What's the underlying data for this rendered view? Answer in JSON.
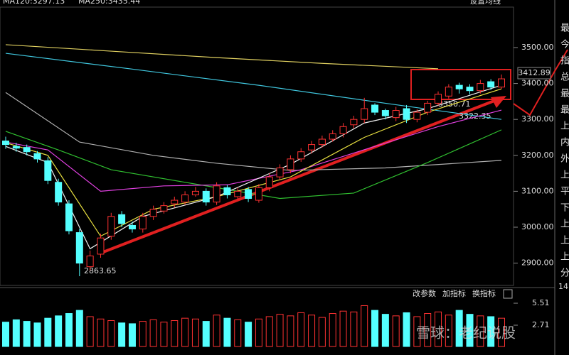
{
  "chart_data": {
    "type": "candlestick",
    "header": [
      "MA120:3297.13",
      "MA250:3435.44"
    ],
    "settings_label": "设置均线",
    "open": [
      3240,
      3225,
      3222,
      3205,
      3185,
      3125,
      3065,
      2985,
      2890,
      2925,
      2975,
      3035,
      3005,
      2995,
      3030,
      3045,
      3065,
      3070,
      3090,
      3100,
      3070,
      3110,
      3085,
      3105,
      3075,
      3110,
      3140,
      3160,
      3190,
      3215,
      3230,
      3245,
      3260,
      3285,
      3300,
      3340,
      3325,
      3305,
      3330,
      3300,
      3320,
      3345,
      3365,
      3395,
      3390,
      3380,
      3405,
      3390
    ],
    "high": [
      3252,
      3235,
      3230,
      3212,
      3195,
      3135,
      3075,
      2995,
      2935,
      2982,
      3040,
      3045,
      3015,
      3040,
      3060,
      3070,
      3085,
      3100,
      3112,
      3108,
      3125,
      3118,
      3110,
      3112,
      3120,
      3150,
      3175,
      3200,
      3220,
      3240,
      3255,
      3270,
      3290,
      3310,
      3360,
      3345,
      3330,
      3335,
      3340,
      3328,
      3352,
      3378,
      3398,
      3402,
      3398,
      3410,
      3412,
      3425
    ],
    "low": [
      3218,
      3210,
      3200,
      3180,
      3120,
      3060,
      2980,
      2863.65,
      2880,
      2915,
      2965,
      3000,
      2985,
      2985,
      3020,
      3038,
      3055,
      3062,
      3085,
      3060,
      3062,
      3080,
      3078,
      3070,
      3068,
      3100,
      3132,
      3150,
      3182,
      3205,
      3222,
      3238,
      3250,
      3275,
      3290,
      3312,
      3300,
      3295,
      3290,
      3292,
      3312,
      3338,
      3358,
      3372,
      3370,
      3372,
      3382,
      3385
    ],
    "close": [
      3230,
      3220,
      3210,
      3190,
      3130,
      3070,
      2990,
      2900,
      2920,
      2970,
      3030,
      3010,
      2995,
      3030,
      3050,
      3060,
      3075,
      3090,
      3100,
      3070,
      3115,
      3090,
      3100,
      3080,
      3110,
      3140,
      3165,
      3190,
      3210,
      3230,
      3245,
      3260,
      3280,
      3300,
      3330,
      3320,
      3310,
      3325,
      3300,
      3320,
      3345,
      3370,
      3390,
      3385,
      3380,
      3400,
      3390,
      3412.89
    ],
    "up_color": "#ff3232",
    "down_color": "#54ffff",
    "ma_series": [
      {
        "color": "#e0d060",
        "x": [
          0,
          10,
          20,
          30,
          41
        ],
        "values": [
          3508,
          3490,
          3472,
          3456,
          3441
        ]
      },
      {
        "color": "#40c8e0",
        "x": [
          0,
          12,
          24,
          36,
          47
        ],
        "values": [
          3484,
          3440,
          3395,
          3345,
          3300
        ]
      },
      {
        "color": "#b0b0b0",
        "x": [
          0,
          7,
          14,
          20,
          27,
          36,
          47
        ],
        "values": [
          3375,
          3237,
          3200,
          3178,
          3158,
          3165,
          3186
        ]
      },
      {
        "color": "#30c030",
        "x": [
          0,
          5,
          10,
          18,
          26,
          33,
          40,
          47
        ],
        "values": [
          3267,
          3215,
          3160,
          3120,
          3080,
          3095,
          3180,
          3271
        ]
      },
      {
        "color": "#e040e0",
        "x": [
          0,
          4,
          9,
          15,
          21,
          28,
          35,
          41,
          47
        ],
        "values": [
          3237,
          3215,
          3100,
          3115,
          3118,
          3160,
          3225,
          3280,
          3326
        ]
      },
      {
        "color": "#e8e040",
        "x": [
          0,
          4,
          9,
          14,
          20,
          27,
          34,
          40,
          47
        ],
        "values": [
          3235,
          3200,
          2975,
          3050,
          3085,
          3140,
          3250,
          3320,
          3385
        ]
      },
      {
        "color": "#f0f0f0",
        "x": [
          0,
          4,
          8,
          13,
          20,
          27,
          34,
          40,
          47
        ],
        "values": [
          3225,
          3180,
          2940,
          3030,
          3085,
          3175,
          3290,
          3330,
          3395
        ]
      }
    ],
    "ylim": [
      2841.9,
      3612.6
    ],
    "yticks": [
      {
        "value": 2900,
        "label": "2900.00"
      },
      {
        "value": 3000,
        "label": "3000.00"
      },
      {
        "value": 3100,
        "label": "3100.00"
      },
      {
        "value": 3200,
        "label": "3200.00"
      },
      {
        "value": 3300,
        "label": "3300.00"
      },
      {
        "value": 3400,
        "label": "3400.00"
      },
      {
        "value": 3500,
        "label": "3500.00"
      }
    ],
    "annotations": [
      "2863.65",
      "3412.89",
      "3350.71",
      "3322.35"
    ],
    "volume": [
      3.1,
      3.4,
      3.2,
      3.0,
      3.6,
      3.9,
      4.2,
      4.6,
      3.8,
      3.5,
      3.3,
      3.0,
      2.9,
      3.2,
      3.4,
      3.1,
      3.3,
      3.6,
      3.5,
      3.2,
      4.0,
      3.6,
      3.4,
      3.1,
      3.5,
      3.8,
      4.1,
      3.9,
      4.3,
      4.0,
      3.7,
      4.2,
      4.5,
      4.4,
      5.2,
      4.6,
      4.1,
      3.9,
      4.3,
      3.8,
      4.2,
      4.4,
      4.0,
      4.6,
      4.1,
      3.9,
      3.8,
      3.6
    ],
    "vol_ylim": [
      0,
      7.05
    ],
    "vol_yticks": [
      2.71,
      5.51
    ],
    "panel_buttons": [
      "改参数",
      "加指标",
      "换指标"
    ],
    "side_labels": [
      "最",
      "今",
      "指",
      "总",
      "最",
      "最",
      "上",
      "内",
      "外",
      "上",
      "平",
      "下",
      "上",
      "上",
      "上",
      "分"
    ],
    "side_number": "14",
    "watermark": "雪球：老纪说股"
  }
}
